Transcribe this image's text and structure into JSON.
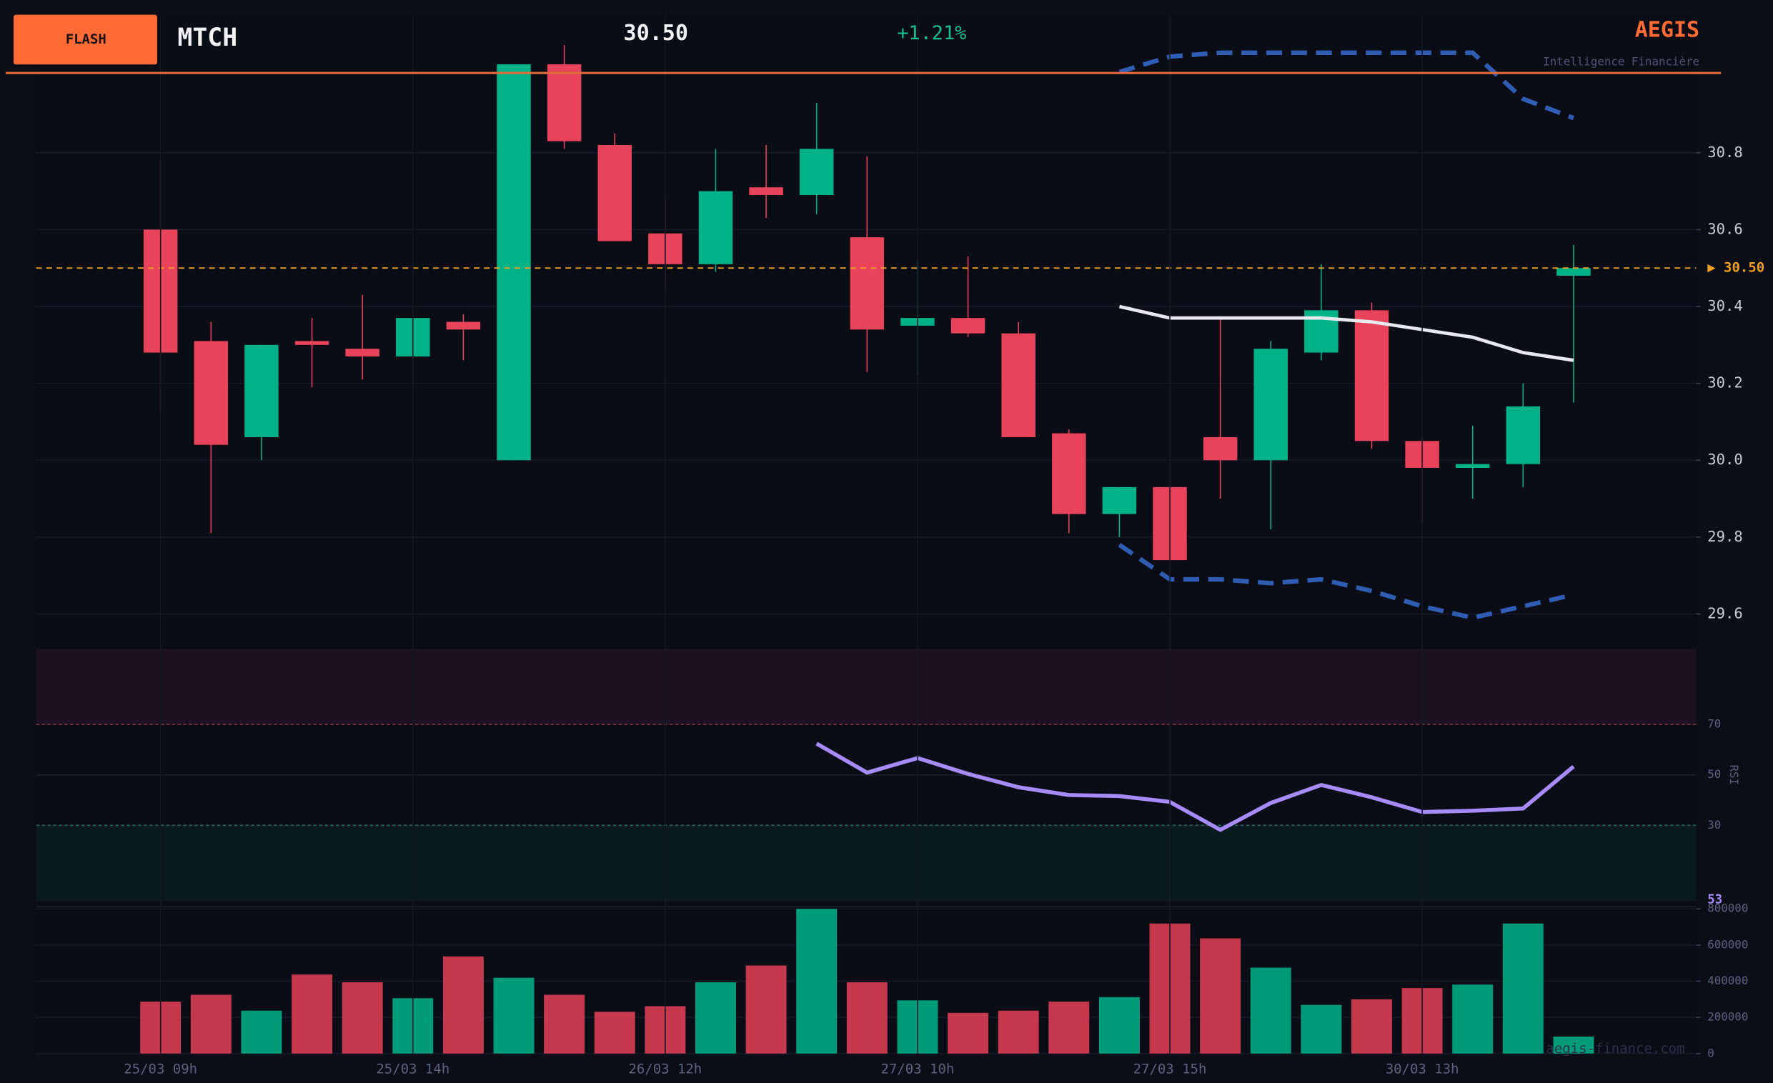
{
  "header": {
    "badge": "FLASH",
    "symbol": "MTCH",
    "price": "30.50",
    "change": "+1.21%",
    "brand": "AEGIS",
    "tagline": "Intelligence Financière"
  },
  "footer": {
    "watermark": "aegis-finance.com"
  },
  "chart_data": [
    {
      "type": "candlestick",
      "up_color": "#00b386",
      "down_color": "#e8435a",
      "open": [
        30.6,
        30.31,
        30.06,
        30.31,
        30.29,
        30.27,
        30.36,
        30.0,
        31.03,
        30.82,
        30.59,
        30.51,
        30.71,
        30.69,
        30.58,
        30.35,
        30.37,
        30.33,
        30.07,
        29.86,
        29.93,
        30.06,
        30.0,
        30.28,
        30.39,
        30.05,
        29.98,
        29.99,
        30.48
      ],
      "high": [
        30.78,
        30.36,
        30.3,
        30.37,
        30.43,
        30.39,
        30.38,
        31.03,
        31.08,
        30.85,
        30.68,
        30.81,
        30.82,
        30.93,
        30.79,
        30.52,
        30.53,
        30.36,
        30.08,
        29.93,
        29.93,
        30.37,
        30.31,
        30.51,
        30.41,
        30.06,
        30.09,
        30.2,
        30.56
      ],
      "low": [
        30.12,
        29.81,
        30.0,
        30.19,
        30.21,
        30.19,
        30.26,
        30.0,
        30.81,
        30.57,
        30.45,
        30.49,
        30.63,
        30.64,
        30.23,
        30.22,
        30.32,
        30.06,
        29.81,
        29.8,
        29.74,
        29.9,
        29.82,
        30.26,
        30.03,
        29.84,
        29.9,
        29.93,
        30.15
      ],
      "close": [
        30.28,
        30.04,
        30.3,
        30.3,
        30.27,
        30.37,
        30.34,
        31.03,
        30.83,
        30.57,
        30.51,
        30.7,
        30.69,
        30.81,
        30.34,
        30.37,
        30.33,
        30.06,
        29.86,
        29.93,
        29.74,
        30.0,
        30.29,
        30.39,
        30.05,
        29.98,
        29.99,
        30.14,
        30.5
      ],
      "overlays": [
        {
          "color": "#2f5db3",
          "dashed": true,
          "values": [
            null,
            null,
            null,
            null,
            null,
            null,
            null,
            null,
            null,
            null,
            null,
            null,
            null,
            null,
            null,
            null,
            null,
            null,
            null,
            31.01,
            31.05,
            31.06,
            31.06,
            31.06,
            31.06,
            31.06,
            31.06,
            30.94,
            30.89
          ]
        },
        {
          "color": "#e8e8ee",
          "dashed": false,
          "values": [
            null,
            null,
            null,
            null,
            null,
            null,
            null,
            null,
            null,
            null,
            null,
            null,
            null,
            null,
            null,
            null,
            null,
            null,
            null,
            30.4,
            30.37,
            30.37,
            30.37,
            30.37,
            30.36,
            30.34,
            30.32,
            30.28,
            30.26
          ]
        },
        {
          "color": "#2f5db3",
          "dashed": true,
          "values": [
            null,
            null,
            null,
            null,
            null,
            null,
            null,
            null,
            null,
            null,
            null,
            null,
            null,
            null,
            null,
            null,
            null,
            null,
            null,
            29.78,
            29.69,
            29.69,
            29.68,
            29.69,
            29.66,
            29.62,
            29.59,
            29.62,
            29.65
          ]
        }
      ],
      "last_price": {
        "value": 30.5,
        "label": "▶ 30.50"
      },
      "last_color": "#f0a020",
      "ylim": [
        29.515,
        31.156
      ],
      "yticks": [
        29.6,
        29.8,
        {
          "value": 30,
          "label": "30.0"
        },
        30.2,
        30.4,
        30.6,
        30.8
      ],
      "grid": true
    },
    {
      "type": "line",
      "y_label": "RSI",
      "series": [
        {
          "color": "#a78bfa",
          "values": [
            null,
            null,
            null,
            null,
            null,
            null,
            null,
            null,
            null,
            null,
            null,
            null,
            null,
            62.4,
            50.9,
            56.7,
            50.4,
            45.1,
            42.0,
            41.6,
            39.3,
            28.2,
            38.9,
            46.0,
            41.1,
            35.3,
            35.8,
            36.7,
            53.3
          ],
          "value_labels": [
            null,
            null,
            null,
            null,
            null,
            null,
            null,
            null,
            null,
            null,
            null,
            null,
            null,
            null,
            null,
            null,
            null,
            null,
            null,
            null,
            null,
            null,
            null,
            null,
            null,
            null,
            null,
            null,
            "53"
          ]
        }
      ],
      "overbought": [
        70,
        100
      ],
      "oversold": [
        0,
        30
      ],
      "ylim": [
        0,
        100
      ],
      "yticks": [
        30,
        50,
        70
      ]
    },
    {
      "type": "bar",
      "up_color": "#009b77",
      "down_color": "#c5384e",
      "categories": [
        "25/03 09h",
        null,
        null,
        null,
        null,
        "25/03 14h",
        null,
        null,
        null,
        null,
        "26/03 12h",
        null,
        null,
        null,
        null,
        "27/03 10h",
        null,
        null,
        null,
        null,
        "27/03 15h",
        null,
        null,
        null,
        null,
        "30/03 13h",
        null,
        null,
        null
      ],
      "values": [
        287000,
        325000,
        237000,
        437000,
        394000,
        306000,
        537000,
        419000,
        325000,
        231000,
        262000,
        394000,
        487000,
        800000,
        394000,
        294000,
        225000,
        237000,
        287000,
        312000,
        719000,
        637000,
        475000,
        269000,
        300000,
        362000,
        381000,
        719000,
        94000
      ],
      "ylim": [
        0,
        800000
      ],
      "yticks": [
        0,
        200000,
        400000,
        600000,
        800000
      ]
    }
  ]
}
